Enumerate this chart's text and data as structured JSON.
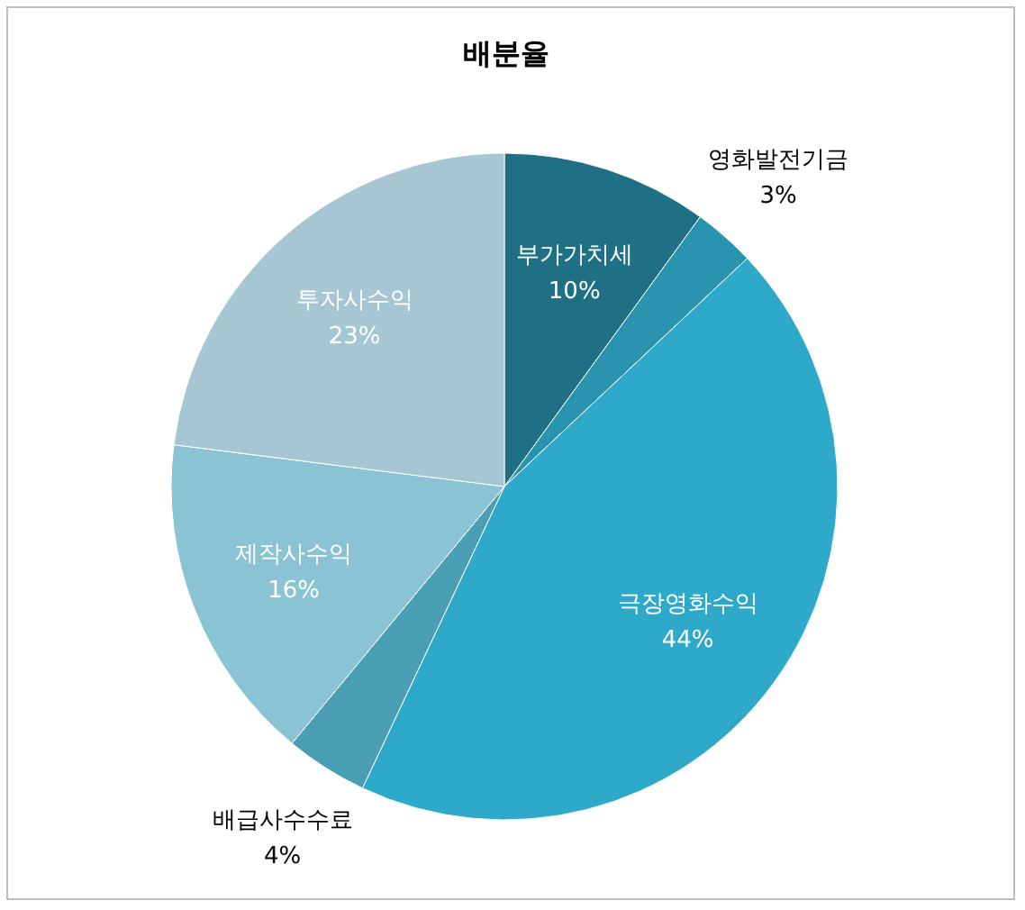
{
  "chart_data": {
    "type": "pie",
    "title": "배분율",
    "categories": [
      "부가가치세",
      "영화발전기금",
      "극장영화수익",
      "배급사수수료",
      "제작사수익",
      "투자사수익"
    ],
    "values": [
      10,
      3,
      44,
      4,
      16,
      23
    ],
    "colors": [
      "#1f7085",
      "#2a93ad",
      "#2ea9c9",
      "#4a9fb5",
      "#8ac3d4",
      "#a6c6d3"
    ],
    "value_labels": [
      "10%",
      "3%",
      "44%",
      "4%",
      "16%",
      "23%"
    ]
  }
}
